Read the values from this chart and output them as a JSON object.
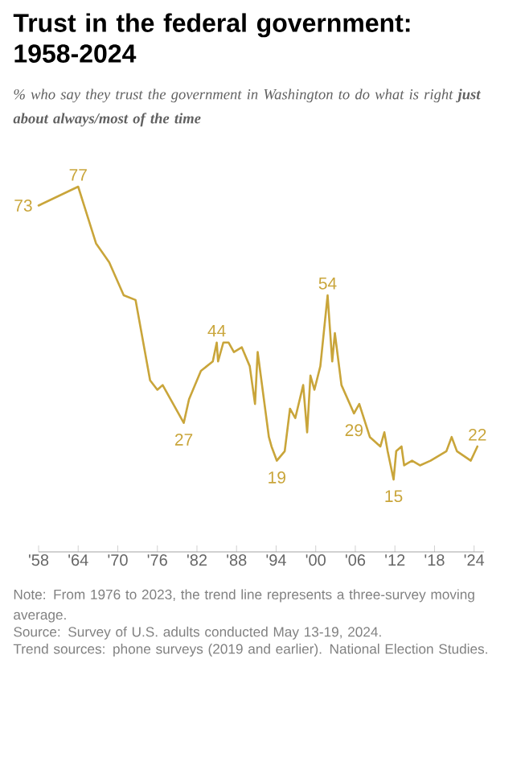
{
  "chart_data": {
    "type": "line",
    "title": "Trust in the federal government: 1958-2024",
    "subtitle": "% who say they trust the government in Washington to do what is right **just about always/most of the time**",
    "x": [
      1958,
      1964,
      1966.7,
      1968.7,
      1970.9,
      1972.7,
      1974.9,
      1976,
      1976.8,
      1980,
      1980.8,
      1982.6,
      1984.4,
      1985,
      1985.2,
      1986,
      1986.8,
      1987.6,
      1988.8,
      1990,
      1990.8,
      1991.2,
      1992.9,
      1993.3,
      1994.1,
      1995.3,
      1996.1,
      1996.9,
      1998.1,
      1998.7,
      1999.2,
      1999.8,
      2000.7,
      2001.8,
      2002.5,
      2002.9,
      2003.9,
      2005.8,
      2006.6,
      2008.2,
      2009.8,
      2010.4,
      2010.9,
      2011.8,
      2012.2,
      2013,
      2013.4,
      2014.6,
      2015.8,
      2017.4,
      2019.8,
      2020.6,
      2021.4,
      2023.5,
      2024.5
    ],
    "series": [
      {
        "color": "#c9a53a",
        "values": [
          73,
          77,
          65,
          61,
          54,
          53,
          36,
          34,
          35,
          27,
          32,
          38,
          40,
          44,
          40,
          44,
          44,
          42,
          43,
          39,
          31,
          42,
          24,
          22,
          19,
          21,
          30,
          28,
          35,
          25,
          37,
          34,
          39,
          54,
          40,
          46,
          35,
          29,
          31,
          24,
          22,
          25,
          21,
          15,
          21,
          22,
          18,
          19,
          18,
          19,
          21,
          24,
          21,
          19,
          22
        ],
        "value_labels": [
          "73",
          "77",
          null,
          null,
          null,
          null,
          null,
          null,
          null,
          "27",
          null,
          null,
          null,
          "44",
          null,
          null,
          null,
          null,
          null,
          null,
          null,
          null,
          null,
          null,
          "19",
          null,
          null,
          null,
          null,
          null,
          null,
          null,
          null,
          "54",
          null,
          null,
          null,
          "29",
          null,
          null,
          null,
          null,
          null,
          "15",
          null,
          null,
          null,
          null,
          null,
          null,
          null,
          null,
          null,
          null,
          "22"
        ]
      }
    ],
    "xlim": [
      1958,
      2025.5
    ],
    "xticks": [
      {
        "value": 1958,
        "label": "'58"
      },
      {
        "value": 1964,
        "label": "'64"
      },
      {
        "value": 1970,
        "label": "'70"
      },
      {
        "value": 1976,
        "label": "'76"
      },
      {
        "value": 1982,
        "label": "'82"
      },
      {
        "value": 1988,
        "label": "'88"
      },
      {
        "value": 1994,
        "label": "'94"
      },
      {
        "value": 2000,
        "label": "'00"
      },
      {
        "value": 2006,
        "label": "'06"
      },
      {
        "value": 2012,
        "label": "'12"
      },
      {
        "value": 2018,
        "label": "'18"
      },
      {
        "value": 2024,
        "label": "'24"
      }
    ],
    "tick_labels": "x",
    "marker": "none",
    "line_style": "solid",
    "annotations": [
      "Note: From 1976 to 2023, the trend line represents a three-survey moving average.",
      "Source: Survey of U.S. adults conducted May 13-19, 2024.",
      "Trend sources: phone surveys (2019 and earlier). National Election Studies."
    ]
  }
}
